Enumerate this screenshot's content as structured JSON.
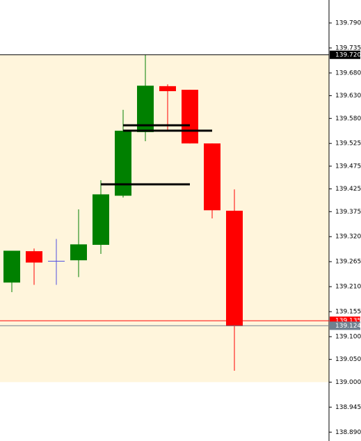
{
  "chart_data": {
    "type": "candlestick",
    "categories": [
      null,
      null,
      null,
      null,
      null,
      null,
      null,
      null,
      null,
      null,
      null
    ],
    "open": [
      139.219,
      139.288,
      139.266,
      139.268,
      139.302,
      139.41,
      139.55,
      139.651,
      139.643,
      139.525,
      139.377
    ],
    "high": [
      139.289,
      139.294,
      139.315,
      139.38,
      139.444,
      139.599,
      139.72,
      139.655,
      139.643,
      139.525,
      139.424
    ],
    "low": [
      139.198,
      139.214,
      139.214,
      139.231,
      139.282,
      139.406,
      139.53,
      139.554,
      139.525,
      139.36,
      139.025
    ],
    "close": [
      139.289,
      139.263,
      139.266,
      139.303,
      139.413,
      139.553,
      139.652,
      139.64,
      139.525,
      139.378,
      139.123
    ],
    "up_color": "#008000",
    "down_color": "#ff0000",
    "doji_color": "#5050e0",
    "ylim": [
      138.8705,
      139.8405
    ],
    "yticks": [
      {
        "value": 139.79,
        "label": "139.790"
      },
      {
        "value": 139.735,
        "label": "139.735"
      },
      {
        "value": 139.68,
        "label": "139.680"
      },
      {
        "value": 139.63,
        "label": "139.630"
      },
      {
        "value": 139.58,
        "label": "139.580"
      },
      {
        "value": 139.525,
        "label": "139.525"
      },
      {
        "value": 139.475,
        "label": "139.475"
      },
      {
        "value": 139.425,
        "label": "139.425"
      },
      {
        "value": 139.375,
        "label": "139.375"
      },
      {
        "value": 139.32,
        "label": "139.320"
      },
      {
        "value": 139.265,
        "label": "139.265"
      },
      {
        "value": 139.21,
        "label": "139.210"
      },
      {
        "value": 139.155,
        "label": "139.155"
      },
      {
        "value": 139.1,
        "label": "139.100"
      },
      {
        "value": 139.05,
        "label": "139.050"
      },
      {
        "value": 139,
        "label": "139.000"
      },
      {
        "value": 138.945,
        "label": "138.945"
      },
      {
        "value": 138.89,
        "label": "138.890"
      }
    ],
    "zone": {
      "from": 139.0,
      "to": 139.72,
      "color": "#fff5dc"
    },
    "price_lines": [
      {
        "value": 139.72,
        "label": "139.720",
        "color": "#000000"
      },
      {
        "value": 139.135,
        "label": "139.135",
        "color": "#ff0000"
      },
      {
        "value": 139.124,
        "label": "139.124",
        "color": "#708090"
      }
    ],
    "levels": [
      {
        "value": 139.565,
        "from": 5,
        "to": 8
      },
      {
        "value": 139.553,
        "from": 5,
        "to": 9
      },
      {
        "value": 139.435,
        "from": 4,
        "to": 8
      }
    ]
  }
}
